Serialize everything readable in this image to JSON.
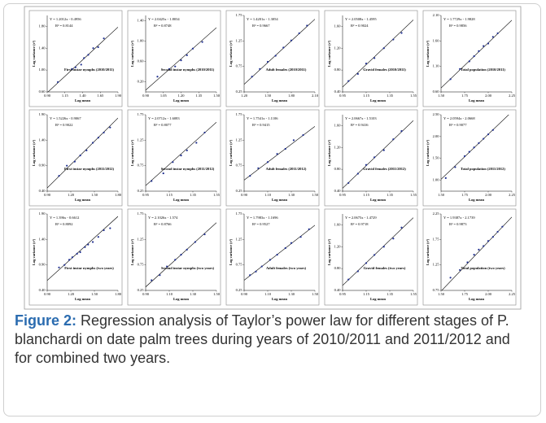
{
  "chart_data": [
    {
      "type": "scatter",
      "equation": "Y = 1.2012x - 0.4956",
      "r2": "R² = 0.8144",
      "label": "First instar nymphs (2010/2011)",
      "xlabel": "Log mean",
      "ylabel": "Log variance (s²)",
      "fit": {
        "slope": 1.2012,
        "intercept": -0.4956
      },
      "xlim": [
        0.9,
        1.9
      ],
      "ylim": [
        0.6,
        2.0
      ],
      "xticks": [
        {
          "value": 0.9,
          "label": "0.90"
        },
        1.15,
        {
          "value": 1.4,
          "label": "1.40"
        },
        1.65,
        {
          "value": 1.9,
          "label": "1.90"
        }
      ],
      "yticks": [
        {
          "value": 0.6,
          "label": "0.60"
        },
        {
          "value": 1.0,
          "label": "1.00"
        },
        {
          "value": 1.4,
          "label": "1.40"
        },
        {
          "value": 1.8,
          "label": "1.80"
        }
      ],
      "x": [
        1.05,
        1.25,
        1.3,
        1.38,
        1.42,
        1.48,
        1.55,
        1.62,
        1.7
      ],
      "y": [
        0.78,
        1.02,
        1.05,
        1.1,
        1.22,
        1.28,
        1.4,
        1.42,
        1.58
      ]
    },
    {
      "type": "scatter",
      "equation": "Y = 2.0425x - 1.8034",
      "r2": "R² = 0.8748",
      "label": "Second instar nymphs (2010/2011)",
      "xlabel": "Log mean",
      "ylabel": "Log variance (s²)",
      "fit": {
        "slope": 2.0425,
        "intercept": -1.8034
      },
      "xlim": [
        0.9,
        1.5
      ],
      "ylim": [
        0.0,
        1.5
      ],
      "xticks": [
        {
          "value": 0.9,
          "label": "0.90"
        },
        1.05,
        {
          "value": 1.2,
          "label": "1.20"
        },
        1.35,
        {
          "value": 1.5,
          "label": "1.50"
        }
      ],
      "yticks": [
        {
          "value": 0.2,
          "label": "0.20"
        },
        {
          "value": 0.6,
          "label": "0.60"
        },
        {
          "value": 1.0,
          "label": "1.00"
        },
        {
          "value": 1.4,
          "label": "1.40"
        }
      ],
      "x": [
        1.0,
        1.1,
        1.15,
        1.2,
        1.25,
        1.3,
        1.38
      ],
      "y": [
        0.3,
        0.45,
        0.5,
        0.62,
        0.72,
        0.85,
        0.98
      ]
    },
    {
      "type": "scatter",
      "equation": "Y = 1.4201x - 1.3054",
      "r2": "R² = 0.9667",
      "label": "Adult females (2010/2011)",
      "xlabel": "Log mean",
      "ylabel": "Log variance (s²)",
      "fit": {
        "slope": 1.4201,
        "intercept": -1.3054
      },
      "xlim": [
        1.2,
        2.1
      ],
      "ylim": [
        0.25,
        1.75
      ],
      "xticks": [
        {
          "value": 1.2,
          "label": "1.20"
        },
        {
          "value": 1.5,
          "label": "1.50"
        },
        {
          "value": 1.8,
          "label": "1.80"
        },
        {
          "value": 2.1,
          "label": "2.10"
        }
      ],
      "yticks": [
        0.25,
        0.75,
        1.25,
        1.75
      ],
      "x": [
        1.3,
        1.4,
        1.5,
        1.6,
        1.7,
        1.8,
        1.9,
        2.0
      ],
      "y": [
        0.55,
        0.7,
        0.84,
        0.96,
        1.12,
        1.26,
        1.4,
        1.55
      ]
    },
    {
      "type": "scatter",
      "equation": "Y = 2.0508x - 1.4595",
      "r2": "R² = 0.9024",
      "label": "Gravid females (2010/2011)",
      "xlabel": "Log mean",
      "ylabel": "Log variance (s²)",
      "fit": {
        "slope": 2.0508,
        "intercept": -1.4595
      },
      "xlim": [
        0.95,
        1.55
      ],
      "ylim": [
        0.4,
        1.8
      ],
      "xticks": [
        0.95,
        1.15,
        1.35,
        1.55
      ],
      "yticks": [
        {
          "value": 0.4,
          "label": "0.40"
        },
        {
          "value": 0.8,
          "label": "0.80"
        },
        {
          "value": 1.2,
          "label": "1.20"
        },
        {
          "value": 1.6,
          "label": "1.60"
        }
      ],
      "x": [
        1.0,
        1.08,
        1.15,
        1.22,
        1.3,
        1.38,
        1.45
      ],
      "y": [
        0.6,
        0.73,
        0.92,
        1.02,
        1.2,
        1.36,
        1.48
      ]
    },
    {
      "type": "scatter",
      "equation": "Y = 1.7729x - 1.9828",
      "r2": "R² = 0.9856",
      "label": "Total population (2010/2011)",
      "xlabel": "Log mean",
      "ylabel": "Log variance (s²)",
      "fit": {
        "slope": 1.7729,
        "intercept": -1.9828
      },
      "xlim": [
        1.5,
        2.25
      ],
      "ylim": [
        0.6,
        2.1
      ],
      "xticks": [
        {
          "value": 1.5,
          "label": "1.50"
        },
        1.75,
        {
          "value": 2.0,
          "label": "2.00"
        },
        2.25
      ],
      "yticks": [
        {
          "value": 0.6,
          "label": "0.60"
        },
        {
          "value": 1.1,
          "label": "1.10"
        },
        {
          "value": 1.6,
          "label": "1.60"
        },
        {
          "value": 2.1,
          "label": "2.10"
        }
      ],
      "x": [
        1.6,
        1.7,
        1.8,
        1.85,
        1.9,
        1.95,
        2.0,
        2.05,
        2.1
      ],
      "y": [
        0.85,
        1.05,
        1.2,
        1.3,
        1.4,
        1.5,
        1.55,
        1.68,
        1.75
      ]
    },
    {
      "type": "scatter",
      "equation": "Y = 1.5226x - 0.9067",
      "r2": "R² = 0.9022",
      "label": "First instar nymphs (2011/2012)",
      "xlabel": "Log mean",
      "ylabel": "Log variance (s²)",
      "fit": {
        "slope": 1.5226,
        "intercept": -0.9067
      },
      "xlim": [
        0.9,
        1.8
      ],
      "ylim": [
        0.4,
        1.9
      ],
      "xticks": [
        {
          "value": 0.9,
          "label": "0.90"
        },
        {
          "value": 1.2,
          "label": "1.20"
        },
        {
          "value": 1.5,
          "label": "1.50"
        },
        {
          "value": 1.8,
          "label": "1.80"
        }
      ],
      "yticks": [
        {
          "value": 0.4,
          "label": "0.40"
        },
        {
          "value": 0.9,
          "label": "0.90"
        },
        {
          "value": 1.4,
          "label": "1.40"
        },
        {
          "value": 1.9,
          "label": "1.90"
        }
      ],
      "x": [
        1.05,
        1.15,
        1.25,
        1.32,
        1.4,
        1.48,
        1.55,
        1.62,
        1.7
      ],
      "y": [
        0.7,
        0.9,
        0.98,
        1.1,
        1.2,
        1.35,
        1.45,
        1.55,
        1.65
      ]
    },
    {
      "type": "scatter",
      "equation": "Y = 2.0712x - 1.6083",
      "r2": "R² = 0.8077",
      "label": "Second instar nymphs (2011/2012)",
      "xlabel": "Log mean",
      "ylabel": "Log variance (s²)",
      "fit": {
        "slope": 2.0712,
        "intercept": -1.6083
      },
      "xlim": [
        0.95,
        1.55
      ],
      "ylim": [
        0.25,
        1.75
      ],
      "xticks": [
        0.95,
        1.15,
        1.35,
        1.55
      ],
      "yticks": [
        0.25,
        0.75,
        1.25,
        1.75
      ],
      "x": [
        1.0,
        1.1,
        1.18,
        1.25,
        1.3,
        1.38,
        1.45
      ],
      "y": [
        0.45,
        0.6,
        0.82,
        0.95,
        1.05,
        1.2,
        1.4
      ]
    },
    {
      "type": "scatter",
      "equation": "Y = 1.7541x - 1.1106",
      "r2": "R² = 0.9415",
      "label": "Adult females (2011/2012)",
      "xlabel": "Log mean",
      "ylabel": "Log variance (s²)",
      "fit": {
        "slope": 1.7541,
        "intercept": -1.1106
      },
      "xlim": [
        0.9,
        1.5
      ],
      "ylim": [
        0.25,
        1.75
      ],
      "xticks": [
        {
          "value": 0.9,
          "label": "0.90"
        },
        {
          "value": 1.1,
          "label": "1.10"
        },
        {
          "value": 1.3,
          "label": "1.30"
        },
        {
          "value": 1.5,
          "label": "1.50"
        }
      ],
      "yticks": [
        0.25,
        0.75,
        1.25,
        1.75
      ],
      "x": [
        0.95,
        1.02,
        1.1,
        1.18,
        1.25,
        1.32,
        1.4
      ],
      "y": [
        0.55,
        0.7,
        0.82,
        0.98,
        1.08,
        1.25,
        1.35
      ]
    },
    {
      "type": "scatter",
      "equation": "Y = 2.0667x - 1.5103",
      "r2": "R² = 0.9416",
      "label": "Gravid females (2011/2012)",
      "xlabel": "Log mean",
      "ylabel": "Log variance (s²)",
      "fit": {
        "slope": 2.0667,
        "intercept": -1.5103
      },
      "xlim": [
        0.95,
        1.55
      ],
      "ylim": [
        0.4,
        1.8
      ],
      "xticks": [
        0.95,
        1.15,
        1.35,
        1.55
      ],
      "yticks": [
        {
          "value": 0.4,
          "label": "0.40"
        },
        {
          "value": 0.8,
          "label": "0.80"
        },
        {
          "value": 1.2,
          "label": "1.20"
        },
        {
          "value": 1.6,
          "label": "1.60"
        }
      ],
      "x": [
        1.0,
        1.08,
        1.15,
        1.22,
        1.3,
        1.38,
        1.45
      ],
      "y": [
        0.55,
        0.72,
        0.88,
        1.02,
        1.15,
        1.35,
        1.5
      ]
    },
    {
      "type": "scatter",
      "equation": "Y = 2.0594x - 2.0668",
      "r2": "R² = 0.9077",
      "label": "Total population (2011/2012)",
      "xlabel": "Log mean",
      "ylabel": "Log variance (s²)",
      "fit": {
        "slope": 2.0594,
        "intercept": -2.0668
      },
      "xlim": [
        1.5,
        2.25
      ],
      "ylim": [
        0.75,
        2.5
      ],
      "xticks": [
        {
          "value": 1.5,
          "label": "1.50"
        },
        1.75,
        {
          "value": 2.0,
          "label": "2.00"
        },
        2.25
      ],
      "yticks": [
        {
          "value": 1.0,
          "label": "1.00"
        },
        {
          "value": 1.5,
          "label": "1.50"
        },
        {
          "value": 2.0,
          "label": "2.00"
        },
        {
          "value": 2.5,
          "label": "2.50"
        }
      ],
      "x": [
        1.55,
        1.65,
        1.75,
        1.8,
        1.85,
        1.9,
        1.95,
        2.0,
        2.05
      ],
      "y": [
        1.05,
        1.3,
        1.55,
        1.65,
        1.75,
        1.85,
        1.95,
        2.05,
        2.15
      ]
    },
    {
      "type": "scatter",
      "equation": "Y = 1.396x - 0.6612",
      "r2": "R² = 0.8092",
      "label": "First instar nymphs (two years)",
      "xlabel": "Log mean",
      "ylabel": "Log variance (s²)",
      "fit": {
        "slope": 1.396,
        "intercept": -0.6612
      },
      "xlim": [
        0.9,
        1.8
      ],
      "ylim": [
        0.4,
        1.9
      ],
      "xticks": [
        {
          "value": 0.9,
          "label": "0.90"
        },
        {
          "value": 1.2,
          "label": "1.20"
        },
        {
          "value": 1.5,
          "label": "1.50"
        },
        {
          "value": 1.8,
          "label": "1.80"
        }
      ],
      "yticks": [
        {
          "value": 0.4,
          "label": "0.40"
        },
        {
          "value": 0.9,
          "label": "0.90"
        },
        {
          "value": 1.4,
          "label": "1.40"
        },
        {
          "value": 1.9,
          "label": "1.90"
        }
      ],
      "x": [
        1.05,
        1.12,
        1.18,
        1.22,
        1.28,
        1.32,
        1.38,
        1.42,
        1.48,
        1.55,
        1.62,
        1.7
      ],
      "y": [
        0.85,
        0.9,
        1.0,
        1.05,
        1.12,
        1.15,
        1.25,
        1.3,
        1.35,
        1.45,
        1.58,
        1.62
      ]
    },
    {
      "type": "scatter",
      "equation": "Y = 2.1026x - 1.574",
      "r2": "R² = 0.8766",
      "label": "Second instar nymphs (two years)",
      "xlabel": "Log mean",
      "ylabel": "Log variance (s²)",
      "fit": {
        "slope": 2.1026,
        "intercept": -1.574
      },
      "xlim": [
        0.9,
        1.5
      ],
      "ylim": [
        0.25,
        1.75
      ],
      "xticks": [
        {
          "value": 0.9,
          "label": "0.90"
        },
        {
          "value": 1.1,
          "label": "1.10"
        },
        {
          "value": 1.3,
          "label": "1.30"
        },
        {
          "value": 1.5,
          "label": "1.50"
        }
      ],
      "yticks": [
        0.25,
        0.75,
        1.25,
        1.75
      ],
      "x": [
        0.95,
        1.02,
        1.08,
        1.15,
        1.2,
        1.25,
        1.32,
        1.4
      ],
      "y": [
        0.45,
        0.55,
        0.72,
        0.85,
        0.95,
        1.05,
        1.2,
        1.35
      ]
    },
    {
      "type": "scatter",
      "equation": "Y = 1.7983x - 1.1696",
      "r2": "R² = 0.9527",
      "label": "Adult females (two years)",
      "xlabel": "Log mean",
      "ylabel": "Log variance (s²)",
      "fit": {
        "slope": 1.7983,
        "intercept": -1.1696
      },
      "xlim": [
        0.9,
        1.5
      ],
      "ylim": [
        0.25,
        1.75
      ],
      "xticks": [
        {
          "value": 0.9,
          "label": "0.90"
        },
        {
          "value": 1.1,
          "label": "1.10"
        },
        {
          "value": 1.3,
          "label": "1.30"
        },
        {
          "value": 1.5,
          "label": "1.50"
        }
      ],
      "yticks": [
        0.25,
        0.75,
        1.25,
        1.75
      ],
      "x": [
        0.95,
        1.0,
        1.05,
        1.12,
        1.18,
        1.25,
        1.3,
        1.38,
        1.45
      ],
      "y": [
        0.55,
        0.62,
        0.72,
        0.85,
        0.95,
        1.08,
        1.18,
        1.3,
        1.45
      ]
    },
    {
      "type": "scatter",
      "equation": "Y = 2.0675x - 1.4729",
      "r2": "R² = 0.9718",
      "label": "Gravid females (two years)",
      "xlabel": "Log mean",
      "ylabel": "Log variance (s²)",
      "fit": {
        "slope": 2.0675,
        "intercept": -1.4729
      },
      "xlim": [
        0.95,
        1.55
      ],
      "ylim": [
        0.4,
        1.8
      ],
      "xticks": [
        0.95,
        1.15,
        1.35,
        1.55
      ],
      "yticks": [
        {
          "value": 0.4,
          "label": "0.40"
        },
        {
          "value": 0.8,
          "label": "0.80"
        },
        {
          "value": 1.2,
          "label": "1.20"
        },
        {
          "value": 1.6,
          "label": "1.60"
        }
      ],
      "x": [
        1.0,
        1.08,
        1.15,
        1.22,
        1.3,
        1.38,
        1.45
      ],
      "y": [
        0.6,
        0.75,
        0.9,
        1.05,
        1.2,
        1.35,
        1.55
      ]
    },
    {
      "type": "scatter",
      "equation": "Y = 1.9387x - 2.1739",
      "r2": "R² = 0.9873",
      "label": "Total population (two years)",
      "xlabel": "Log mean",
      "ylabel": "Log variance (s²)",
      "fit": {
        "slope": 1.9387,
        "intercept": -2.1739
      },
      "xlim": [
        1.5,
        2.25
      ],
      "ylim": [
        0.75,
        2.25
      ],
      "xticks": [
        {
          "value": 1.5,
          "label": "1.50"
        },
        1.75,
        {
          "value": 2.0,
          "label": "2.00"
        },
        2.25
      ],
      "yticks": [
        0.75,
        1.25,
        1.75,
        2.25
      ],
      "x": [
        1.6,
        1.7,
        1.78,
        1.85,
        1.9,
        1.95,
        2.0,
        2.05,
        2.1,
        2.15
      ],
      "y": [
        1.0,
        1.15,
        1.3,
        1.45,
        1.55,
        1.62,
        1.72,
        1.8,
        1.9,
        2.0
      ]
    }
  ],
  "caption": {
    "label": "Figure 2:",
    "text": "Regression analysis of Taylor’s power law for different stages of P. blanchardi on date palm trees during years of 2010/2011 and 2011/2012 and for combined two years."
  }
}
